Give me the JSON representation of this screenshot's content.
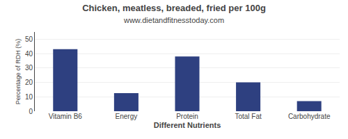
{
  "chart_data": {
    "type": "bar",
    "title": "Chicken, meatless, breaded, fried per 100g",
    "subtitle": "www.dietandfitnesstoday.com",
    "xlabel": "Different Nutrients",
    "ylabel": "Percentage of RDH (%)",
    "categories": [
      "Vitamin B6",
      "Energy",
      "Protein",
      "Total Fat",
      "Carbohydrate"
    ],
    "values": [
      43,
      12.5,
      38,
      20,
      7
    ],
    "color": "#2e4080",
    "ylim": [
      0,
      55
    ],
    "yticks": [
      0,
      10,
      20,
      30,
      40,
      50
    ],
    "grid": true
  }
}
